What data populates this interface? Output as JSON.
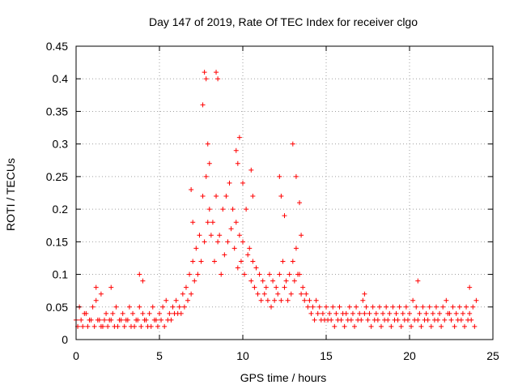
{
  "chart_data": {
    "type": "scatter",
    "title": "Day 147 of 2019, Rate Of TEC Index for receiver clgo",
    "xlabel": "GPS time / hours",
    "ylabel": "ROTI / TECUs",
    "xlim": [
      0,
      25
    ],
    "ylim": [
      0,
      0.45
    ],
    "x_ticks": [
      "0",
      "5",
      "10",
      "15",
      "20",
      "25"
    ],
    "y_ticks": [
      "0",
      "0.05",
      "0.1",
      "0.15",
      "0.2",
      "0.25",
      "0.3",
      "0.35",
      "0.4",
      "0.45"
    ],
    "x_tick_values": [
      0,
      5,
      10,
      15,
      20,
      25
    ],
    "y_tick_values": [
      0,
      0.05,
      0.1,
      0.15,
      0.2,
      0.25,
      0.3,
      0.35,
      0.4,
      0.45
    ],
    "grid": true,
    "marker": "+",
    "series": [
      {
        "name": "ROTI",
        "color": "#ff0000",
        "x": [
          0.0,
          0.2,
          0.4,
          0.6,
          0.8,
          1.0,
          1.2,
          1.4,
          1.6,
          1.8,
          2.0,
          2.2,
          2.4,
          2.6,
          2.8,
          3.0,
          3.2,
          3.4,
          3.6,
          3.8,
          4.0,
          4.2,
          4.4,
          4.6,
          4.8,
          5.0,
          5.2,
          5.4,
          5.6,
          5.8,
          6.0,
          6.2,
          6.4,
          6.6,
          6.8,
          7.0,
          7.2,
          7.4,
          7.6,
          7.8,
          8.0,
          8.2,
          8.4,
          8.6,
          8.8,
          9.0,
          9.2,
          9.4,
          9.6,
          9.8,
          10.0,
          10.2,
          10.4,
          10.6,
          10.8,
          11.0,
          11.2,
          11.4,
          11.6,
          11.8,
          12.0,
          12.2,
          12.4,
          12.6,
          12.8,
          13.0,
          13.2,
          13.4,
          13.6,
          13.8,
          14.0,
          14.2,
          14.4,
          14.6,
          14.8,
          15.0,
          15.2,
          15.4,
          15.6,
          15.8,
          16.0,
          16.2,
          16.4,
          16.6,
          16.8,
          17.0,
          17.2,
          17.4,
          17.6,
          17.8,
          18.0,
          18.2,
          18.4,
          18.6,
          18.8,
          19.0,
          19.2,
          19.4,
          19.6,
          19.8,
          20.0,
          20.2,
          20.4,
          20.6,
          20.8,
          21.0,
          21.2,
          21.4,
          21.6,
          21.8,
          22.0,
          22.2,
          22.4,
          22.6,
          22.8,
          23.0,
          23.2,
          23.4,
          23.6,
          23.8,
          24.0,
          0.1,
          0.3,
          0.5,
          0.7,
          0.9,
          1.1,
          1.3,
          1.5,
          1.7,
          1.9,
          2.1,
          2.3,
          2.5,
          2.7,
          2.9,
          3.1,
          3.3,
          3.5,
          3.7,
          3.9,
          4.1,
          4.3,
          4.5,
          4.7,
          4.9,
          5.1,
          5.3,
          5.5,
          5.7,
          5.9,
          6.1,
          6.3,
          6.5,
          6.7,
          6.9,
          7.1,
          7.3,
          7.5,
          7.7,
          7.9,
          8.1,
          8.3,
          8.5,
          8.7,
          8.9,
          9.1,
          9.3,
          9.5,
          9.7,
          9.9,
          10.1,
          10.3,
          10.5,
          10.7,
          10.9,
          11.1,
          11.3,
          11.5,
          11.7,
          11.9,
          12.1,
          12.3,
          12.5,
          12.7,
          12.9,
          13.1,
          13.3,
          13.5,
          13.7,
          13.9,
          14.1,
          14.3,
          14.5,
          14.7,
          14.9,
          15.1,
          15.3,
          15.5,
          15.7,
          15.9,
          16.1,
          16.3,
          16.5,
          16.7,
          16.9,
          17.1,
          17.3,
          17.5,
          17.7,
          17.9,
          18.1,
          18.3,
          18.5,
          18.7,
          18.9,
          19.1,
          19.3,
          19.5,
          19.7,
          19.9,
          20.1,
          20.3,
          20.5,
          20.7,
          20.9,
          21.1,
          21.3,
          21.5,
          21.7,
          21.9,
          22.1,
          22.3,
          22.5,
          22.7,
          22.9,
          23.1,
          23.3,
          23.5,
          23.7,
          23.9,
          7.6,
          7.7,
          7.8,
          7.9,
          8.0,
          8.4,
          8.5,
          9.6,
          9.7,
          9.8,
          10.0,
          10.5,
          10.6,
          12.2,
          12.3,
          12.5,
          13.0,
          13.2,
          13.4,
          13.5,
          7.0,
          6.9,
          1.2,
          1.5,
          2.1,
          3.8,
          4.0,
          20.5,
          23.6,
          17.3
        ],
        "y": [
          0.03,
          0.05,
          0.02,
          0.04,
          0.03,
          0.05,
          0.06,
          0.03,
          0.02,
          0.04,
          0.03,
          0.04,
          0.05,
          0.03,
          0.04,
          0.03,
          0.05,
          0.04,
          0.03,
          0.05,
          0.04,
          0.03,
          0.04,
          0.05,
          0.03,
          0.04,
          0.05,
          0.06,
          0.04,
          0.05,
          0.06,
          0.05,
          0.07,
          0.08,
          0.1,
          0.12,
          0.14,
          0.16,
          0.22,
          0.25,
          0.2,
          0.18,
          0.22,
          0.16,
          0.2,
          0.22,
          0.24,
          0.2,
          0.18,
          0.16,
          0.15,
          0.2,
          0.14,
          0.12,
          0.11,
          0.1,
          0.09,
          0.08,
          0.1,
          0.09,
          0.08,
          0.1,
          0.12,
          0.09,
          0.1,
          0.12,
          0.14,
          0.1,
          0.08,
          0.07,
          0.06,
          0.05,
          0.06,
          0.05,
          0.04,
          0.05,
          0.04,
          0.05,
          0.04,
          0.05,
          0.04,
          0.04,
          0.05,
          0.04,
          0.05,
          0.04,
          0.06,
          0.05,
          0.04,
          0.05,
          0.04,
          0.05,
          0.04,
          0.05,
          0.04,
          0.05,
          0.04,
          0.05,
          0.04,
          0.05,
          0.04,
          0.06,
          0.05,
          0.04,
          0.05,
          0.04,
          0.05,
          0.04,
          0.05,
          0.04,
          0.05,
          0.06,
          0.04,
          0.05,
          0.04,
          0.05,
          0.04,
          0.05,
          0.04,
          0.05,
          0.06,
          0.02,
          0.03,
          0.04,
          0.02,
          0.03,
          0.02,
          0.03,
          0.02,
          0.03,
          0.02,
          0.03,
          0.02,
          0.02,
          0.03,
          0.02,
          0.03,
          0.02,
          0.02,
          0.03,
          0.02,
          0.03,
          0.02,
          0.02,
          0.03,
          0.02,
          0.03,
          0.02,
          0.03,
          0.03,
          0.04,
          0.04,
          0.04,
          0.05,
          0.06,
          0.07,
          0.09,
          0.1,
          0.12,
          0.15,
          0.18,
          0.16,
          0.12,
          0.15,
          0.1,
          0.13,
          0.15,
          0.17,
          0.14,
          0.11,
          0.12,
          0.1,
          0.13,
          0.09,
          0.08,
          0.07,
          0.06,
          0.07,
          0.06,
          0.05,
          0.06,
          0.07,
          0.06,
          0.08,
          0.06,
          0.07,
          0.09,
          0.1,
          0.07,
          0.06,
          0.05,
          0.04,
          0.03,
          0.04,
          0.03,
          0.03,
          0.03,
          0.03,
          0.02,
          0.03,
          0.03,
          0.02,
          0.03,
          0.03,
          0.02,
          0.03,
          0.03,
          0.04,
          0.03,
          0.02,
          0.03,
          0.03,
          0.02,
          0.03,
          0.03,
          0.02,
          0.03,
          0.03,
          0.02,
          0.03,
          0.03,
          0.02,
          0.03,
          0.03,
          0.02,
          0.03,
          0.03,
          0.02,
          0.03,
          0.03,
          0.02,
          0.03,
          0.04,
          0.03,
          0.02,
          0.03,
          0.03,
          0.02,
          0.03,
          0.03,
          0.02,
          0.36,
          0.41,
          0.4,
          0.3,
          0.27,
          0.41,
          0.4,
          0.29,
          0.27,
          0.31,
          0.24,
          0.26,
          0.22,
          0.25,
          0.22,
          0.19,
          0.3,
          0.25,
          0.21,
          0.16,
          0.18,
          0.23,
          0.08,
          0.07,
          0.08,
          0.1,
          0.09,
          0.09,
          0.08,
          0.07
        ]
      }
    ]
  }
}
